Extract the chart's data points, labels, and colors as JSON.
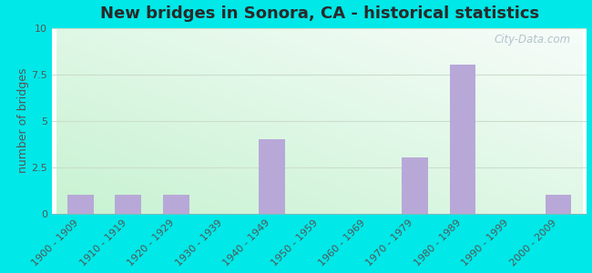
{
  "categories": [
    "1900 - 1909",
    "1910 - 1919",
    "1920 - 1929",
    "1930 - 1939",
    "1940 - 1949",
    "1950 - 1959",
    "1960 - 1969",
    "1970 - 1979",
    "1980 - 1989",
    "1990 - 1999",
    "2000 - 2009"
  ],
  "values": [
    1,
    1,
    1,
    0,
    4,
    0,
    0,
    3,
    8,
    0,
    1
  ],
  "bar_color": "#b8a8d8",
  "title": "New bridges in Sonora, CA - historical statistics",
  "ylabel": "number of bridges",
  "ylim": [
    0,
    10
  ],
  "yticks": [
    0,
    2.5,
    5,
    7.5,
    10
  ],
  "ytick_labels": [
    "0",
    "2.5",
    "5",
    "7.5",
    "10"
  ],
  "outer_bg": "#00e8e8",
  "title_color": "#2a2a2a",
  "watermark": "City-Data.com",
  "title_fontsize": 13,
  "axis_label_fontsize": 9,
  "tick_fontsize": 8,
  "grid_color": "#ccddcc",
  "grad_topleft": [
    0.82,
    0.96,
    0.88
  ],
  "grad_bottomright": [
    0.96,
    0.98,
    0.98
  ]
}
